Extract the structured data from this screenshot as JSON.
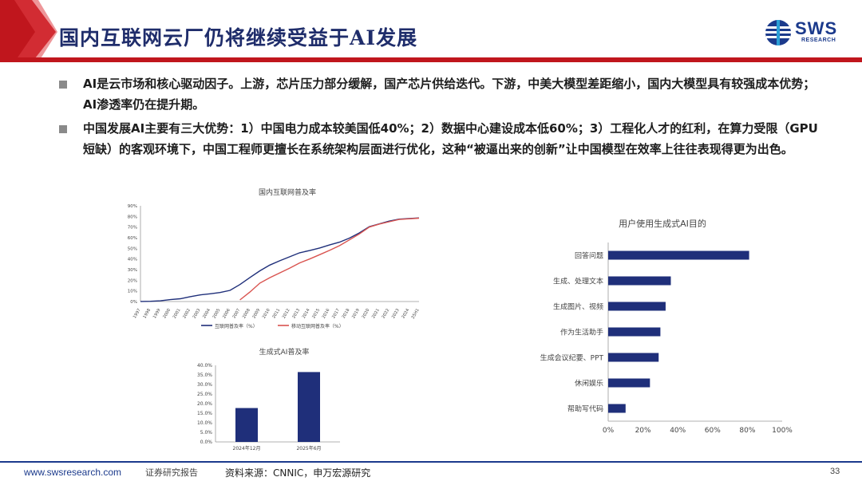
{
  "header": {
    "title": "国内互联网云厂仍将继续受益于AI发展",
    "logo_text": "SWS",
    "logo_sub": "RESEARCH",
    "accent_color": "#c0161d",
    "brand_color": "#1b3a8c"
  },
  "bullets": [
    "AI是云市场和核心驱动因子。上游，芯片压力部分缓解，国产芯片供给迭代。下游，中美大模型差距缩小，国内大模型具有较强成本优势；AI渗透率仍在提升期。",
    "中国发展AI主要有三大优势：1）中国电力成本较美国低40%；2）数据中心建设成本低60%；3）工程化人才的红利，在算力受限（GPU短缺）的客观环境下，中国工程师更擅长在系统架构层面进行优化，这种“被逼出来的创新”让中国模型在效率上往往表现得更为出色。"
  ],
  "footer": {
    "url": "www.swsresearch.com",
    "report": "证券研究报告",
    "source": "资料来源：CNNIC，申万宏源研究",
    "page": "33"
  },
  "chart_data": [
    {
      "type": "line",
      "title": "国内互联网普及率",
      "x": [
        "1997",
        "1998",
        "1999",
        "2000",
        "2001",
        "2002",
        "2003",
        "2004",
        "2005",
        "2006",
        "2007",
        "2008",
        "2009",
        "2010",
        "2011",
        "2012",
        "2013",
        "2014",
        "2015",
        "2016",
        "2017",
        "2018",
        "2019",
        "2020",
        "2021",
        "2022",
        "2023",
        "2024",
        "25H1"
      ],
      "ylim": [
        0,
        90
      ],
      "yticks": [
        "0%",
        "10%",
        "20%",
        "30%",
        "40%",
        "50%",
        "60%",
        "70%",
        "80%",
        "90%"
      ],
      "series": [
        {
          "name": "互联网普及率（%）",
          "color": "#1f2f7a",
          "values": [
            0.1,
            0.2,
            0.7,
            1.8,
            2.6,
            4.6,
            6.2,
            7.3,
            8.5,
            10.5,
            16.0,
            22.6,
            28.9,
            34.3,
            38.3,
            42.1,
            45.8,
            47.9,
            50.3,
            53.2,
            55.8,
            59.6,
            64.5,
            70.4,
            73.0,
            75.6,
            77.5,
            78.0,
            78.6
          ]
        },
        {
          "name": "移动互联网普及率（%）",
          "color": "#d9534f",
          "values": [
            null,
            null,
            null,
            null,
            null,
            null,
            null,
            null,
            null,
            null,
            1.5,
            8.9,
            17.3,
            22.4,
            26.9,
            31.4,
            36.3,
            40.0,
            44.0,
            48.1,
            52.5,
            58.0,
            63.5,
            70.0,
            72.8,
            75.0,
            77.2,
            77.8,
            78.4
          ]
        }
      ],
      "legend": "bottom"
    },
    {
      "type": "bar",
      "title": "生成式AI普及率",
      "categories": [
        "2024年12月",
        "2025年6月"
      ],
      "values": [
        17.7,
        36.5
      ],
      "ylim": [
        0,
        40
      ],
      "yticks": [
        "0.0%",
        "5.0%",
        "10.0%",
        "15.0%",
        "20.0%",
        "25.0%",
        "30.0%",
        "35.0%",
        "40.0%"
      ],
      "color": "#1f2f7a"
    },
    {
      "type": "bar",
      "orientation": "horizontal",
      "title": "用户使用生成式AI目的",
      "categories": [
        "回答问题",
        "生成、处理文本",
        "生成图片、视频",
        "作为生活助手",
        "生成会议纪要、PPT",
        "休闲娱乐",
        "帮助写代码"
      ],
      "values": [
        81,
        36,
        33,
        30,
        29,
        24,
        10
      ],
      "xlim": [
        0,
        100
      ],
      "xticks": [
        "0%",
        "20%",
        "40%",
        "60%",
        "80%",
        "100%"
      ],
      "color": "#1f2f7a"
    }
  ]
}
